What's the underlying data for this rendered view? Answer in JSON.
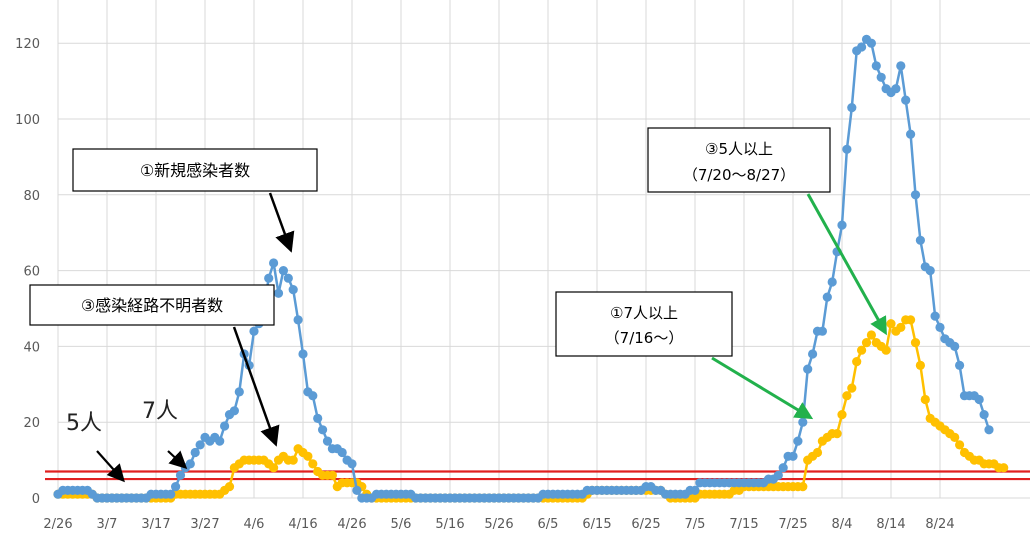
{
  "chart_data": {
    "type": "line",
    "title": "",
    "xlabel": "",
    "ylabel": "",
    "ylim": [
      0,
      125
    ],
    "yticks": [
      0,
      20,
      40,
      60,
      80,
      100,
      120
    ],
    "xticks": [
      "2/26",
      "3/7",
      "3/17",
      "3/27",
      "4/6",
      "4/16",
      "4/26",
      "5/6",
      "5/16",
      "5/26",
      "6/5",
      "6/15",
      "6/25",
      "7/5",
      "7/15",
      "7/25",
      "8/4",
      "8/14",
      "8/24"
    ],
    "grid": true,
    "legend": "none",
    "series": [
      {
        "name": "",
        "color": "#5b9bd5",
        "x_start": "2/26",
        "values": [
          1,
          2,
          2,
          2,
          2,
          2,
          2,
          1,
          0,
          0,
          0,
          0,
          0,
          0,
          0,
          0,
          0,
          0,
          0,
          1,
          1,
          1,
          1,
          1,
          3,
          6,
          8,
          9,
          12,
          14,
          16,
          15,
          16,
          15,
          19,
          22,
          23,
          28,
          38,
          35,
          44,
          46,
          50,
          58,
          62,
          54,
          60,
          58,
          55,
          47,
          38,
          28,
          27,
          21,
          18,
          15,
          13,
          13,
          12,
          10,
          9,
          2,
          0,
          0,
          0,
          1,
          1,
          1,
          1,
          1,
          1,
          1,
          1,
          0,
          0,
          0,
          0,
          0,
          0,
          0,
          0,
          0,
          0,
          0,
          0,
          0,
          0,
          0,
          0,
          0,
          0,
          0,
          0,
          0,
          0,
          0,
          0,
          0,
          0,
          1,
          1,
          1,
          1,
          1,
          1,
          1,
          1,
          1,
          2,
          2,
          2,
          2,
          2,
          2,
          2,
          2,
          2,
          2,
          2,
          2,
          3,
          3,
          2,
          2,
          1,
          1,
          1,
          1,
          1,
          2,
          2,
          4,
          4,
          4,
          4,
          4,
          4,
          4,
          4,
          4,
          4,
          4,
          4,
          4,
          4,
          5,
          5,
          6,
          8,
          11,
          11,
          15,
          20,
          34,
          38,
          44,
          44,
          53,
          57,
          65,
          72,
          92,
          103,
          118,
          119,
          121,
          120,
          114,
          111,
          108,
          107,
          108,
          114,
          105,
          96,
          80,
          68,
          61,
          60,
          48,
          45,
          42,
          41,
          40,
          35,
          27,
          27,
          27,
          26,
          22,
          18
        ]
      },
      {
        "name": "",
        "color": "#ffc000",
        "x_start": "2/26",
        "values": [
          1,
          1,
          1,
          1,
          1,
          1,
          1,
          1,
          0,
          0,
          0,
          0,
          0,
          0,
          0,
          0,
          0,
          0,
          0,
          0,
          0,
          0,
          0,
          0,
          1,
          1,
          1,
          1,
          1,
          1,
          1,
          1,
          1,
          1,
          2,
          3,
          8,
          9,
          10,
          10,
          10,
          10,
          10,
          9,
          8,
          10,
          11,
          10,
          10,
          13,
          12,
          11,
          9,
          7,
          6,
          6,
          6,
          3,
          4,
          4,
          4,
          4,
          3,
          1,
          0,
          0,
          0,
          0,
          0,
          0,
          0,
          0,
          0,
          0,
          0,
          0,
          0,
          0,
          0,
          0,
          0,
          0,
          0,
          0,
          0,
          0,
          0,
          0,
          0,
          0,
          0,
          0,
          0,
          0,
          0,
          0,
          0,
          0,
          0,
          0,
          0,
          0,
          0,
          0,
          0,
          0,
          0,
          0,
          1,
          2,
          2,
          2,
          2,
          2,
          2,
          2,
          2,
          2,
          2,
          2,
          2,
          2,
          2,
          2,
          1,
          0,
          0,
          0,
          0,
          0,
          0,
          1,
          1,
          1,
          1,
          1,
          1,
          1,
          2,
          2,
          3,
          3,
          3,
          3,
          3,
          3,
          3,
          3,
          3,
          3,
          3,
          3,
          3,
          10,
          11,
          12,
          15,
          16,
          17,
          17,
          22,
          27,
          29,
          36,
          39,
          41,
          43,
          41,
          40,
          39,
          46,
          44,
          45,
          47,
          47,
          41,
          35,
          26,
          21,
          20,
          19,
          18,
          17,
          16,
          14,
          12,
          11,
          10,
          10,
          9,
          9,
          9,
          8,
          8
        ]
      }
    ],
    "reference_lines": [
      {
        "value": 5,
        "color": "#e02020"
      },
      {
        "value": 7,
        "color": "#e02020"
      }
    ],
    "annotations": {
      "box_new_cases": "①新規感染者数",
      "box_unknown_route": "③感染経路不明者数",
      "box_7plus_line1": "①7人以上",
      "box_7plus_line2": "（7/16〜）",
      "box_5plus_line1": "③5人以上",
      "box_5plus_line2": "（7/20〜8/27）",
      "label_5": "5人",
      "label_7": "7人"
    }
  }
}
